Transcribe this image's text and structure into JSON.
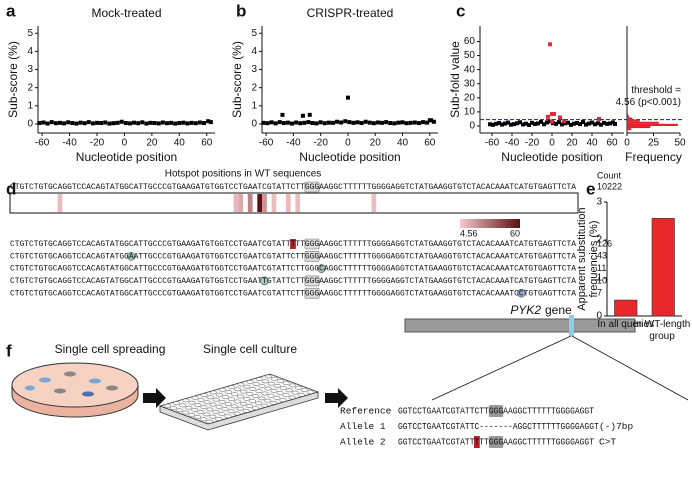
{
  "chart_data": [
    {
      "type": "scatter",
      "panel": "a",
      "title": "Mock-treated",
      "xlabel": "Nucleotide position",
      "ylabel": "Sub-score (%)",
      "xlim": [
        -63,
        66
      ],
      "ylim": [
        -0.5,
        5.4
      ],
      "xticks": [
        -60,
        -40,
        -20,
        0,
        20,
        40,
        60
      ],
      "yticks": [
        0,
        1,
        2,
        3,
        4,
        5
      ],
      "series": [
        {
          "color": "#000000",
          "x": [
            -62,
            -59,
            -56,
            -53,
            -50,
            -47,
            -44,
            -41,
            -38,
            -35,
            -32,
            -29,
            -26,
            -23,
            -20,
            -17,
            -14,
            -11,
            -8,
            -5,
            -2,
            1,
            4,
            7,
            10,
            13,
            16,
            19,
            22,
            25,
            28,
            31,
            34,
            37,
            40,
            43,
            46,
            49,
            52,
            55,
            58,
            61,
            63
          ],
          "values": [
            0.05,
            0.08,
            0.02,
            0.1,
            0.04,
            0.06,
            0.03,
            0.09,
            0.05,
            0.02,
            0.07,
            0.04,
            0.1,
            0.03,
            0.06,
            0.05,
            0.08,
            0.02,
            0.04,
            0.06,
            0.12,
            0.05,
            0.03,
            0.07,
            0.04,
            0.09,
            0.02,
            0.06,
            0.05,
            0.03,
            0.08,
            0.04,
            0.06,
            0.02,
            0.05,
            0.07,
            0.03,
            0.06,
            0.04,
            0.08,
            0.05,
            0.15,
            0.1
          ]
        }
      ]
    },
    {
      "type": "scatter",
      "panel": "b",
      "title": "CRISPR-treated",
      "xlabel": "Nucleotide position",
      "ylabel": "Sub-score (%)",
      "xlim": [
        -63,
        66
      ],
      "ylim": [
        -0.5,
        5.4
      ],
      "xticks": [
        -60,
        -40,
        -20,
        0,
        20,
        40,
        60
      ],
      "yticks": [
        0,
        1,
        2,
        3,
        4,
        5
      ],
      "series": [
        {
          "color": "#000000",
          "x": [
            -62,
            -59,
            -56,
            -53,
            -50,
            -47,
            -44,
            -41,
            -38,
            -35,
            -32,
            -29,
            -26,
            -23,
            -20,
            -17,
            -14,
            -11,
            -8,
            -5,
            -2,
            1,
            4,
            7,
            10,
            13,
            16,
            19,
            22,
            25,
            28,
            31,
            34,
            37,
            40,
            43,
            46,
            49,
            52,
            55,
            58,
            61,
            63,
            -48,
            -33,
            -28,
            0,
            60
          ],
          "values": [
            0.06,
            0.04,
            0.09,
            0.03,
            0.1,
            0.05,
            0.07,
            0.02,
            0.08,
            0.04,
            0.06,
            0.1,
            0.05,
            0.03,
            0.09,
            0.04,
            0.07,
            0.06,
            0.12,
            0.08,
            0.15,
            0.1,
            0.06,
            0.09,
            0.05,
            0.12,
            0.07,
            0.04,
            0.08,
            0.06,
            0.1,
            0.05,
            0.03,
            0.07,
            0.09,
            0.04,
            0.06,
            0.08,
            0.05,
            0.1,
            0.07,
            0.2,
            0.12,
            0.5,
            0.45,
            0.5,
            1.45,
            0.2
          ]
        }
      ]
    },
    {
      "type": "scatter",
      "panel": "c",
      "xlabel": "Nucleotide position",
      "ylabel": "Sub-fold value",
      "xlim": [
        -72,
        72
      ],
      "ylim": [
        -5,
        71
      ],
      "xticks": [
        -60,
        -40,
        -20,
        0,
        20,
        40,
        60
      ],
      "yticks": [
        0,
        10,
        20,
        30,
        40,
        50,
        60
      ],
      "threshold": 4.56,
      "threshold_color": "#1f3f9e",
      "threshold_label": [
        "threshold =",
        "4.56 (p<0.001)"
      ],
      "series": [
        {
          "color": "#000000",
          "x": [
            -62,
            -59,
            -56,
            -53,
            -50,
            -47,
            -44,
            -41,
            -38,
            -35,
            -32,
            -29,
            -26,
            -23,
            -20,
            -17,
            -14,
            -11,
            -8,
            -5,
            -2,
            1,
            4,
            7,
            10,
            13,
            16,
            19,
            22,
            25,
            28,
            31,
            34,
            37,
            40,
            43,
            46,
            49,
            52,
            55,
            58,
            61,
            63
          ],
          "values": [
            1.2,
            0.8,
            1.5,
            2.1,
            1.0,
            1.7,
            2.4,
            0.9,
            1.3,
            1.9,
            2.6,
            1.1,
            1.6,
            0.7,
            2.2,
            1.4,
            1.8,
            2.9,
            1.2,
            2.5,
            3.2,
            2.0,
            1.5,
            2.7,
            1.1,
            1.9,
            2.3,
            0.8,
            1.6,
            2.1,
            1.3,
            2.8,
            1.0,
            1.7,
            2.4,
            1.2,
            1.9,
            0.9,
            2.2,
            1.5,
            1.8,
            2.5,
            1.4
          ]
        },
        {
          "color": "#e8283a",
          "x": [
            -2,
            0,
            2,
            -4,
            8,
            12,
            47,
            0
          ],
          "values": [
            58,
            8.5,
            8.5,
            6.5,
            6,
            3.5,
            5,
            3
          ]
        }
      ]
    },
    {
      "type": "histogram",
      "xlabel": "Frequency",
      "bins": [
        -3,
        -1.5,
        0,
        1.5,
        3,
        4.5,
        6,
        7.5,
        9
      ],
      "counts": [
        4,
        22,
        48,
        30,
        12,
        5,
        2,
        1
      ],
      "color": "#e0202a",
      "xlim": [
        0,
        50
      ],
      "xticks": [
        0,
        25,
        50
      ],
      "ylim": [
        -5,
        71
      ]
    },
    {
      "type": "bar",
      "panel": "e",
      "ylabel": "Apparent substitution frequencies (%)",
      "categories": [
        "In all queries",
        "In WT-length group"
      ],
      "values": [
        0.42,
        2.57
      ],
      "color": "#e8282b",
      "ylim": [
        0,
        3
      ],
      "yticks": [
        0,
        1,
        2,
        3
      ]
    }
  ],
  "sequence_panel": {
    "panel": "d",
    "title": "Hotspot positions in WT sequences",
    "count_header": "Count",
    "reference": {
      "sequence": "CTGTCTGTGCAGGTCCACAGTATGGCATTGCCCGTGAAGATGTGGTCCTGAATCGTATTCTTGGGAAGGCTTTTTTGGGGAGGTCTATGAAGGTGTCTACACAAATCATGTGAGTTCTA",
      "count": 10222
    },
    "hotspots": {
      "positions": [
        10,
        47,
        48,
        50,
        52,
        53,
        55,
        58,
        60,
        76
      ],
      "values": [
        9,
        10,
        14,
        25,
        60,
        20,
        8,
        9,
        8,
        8
      ]
    },
    "colorbar": {
      "ticks": [
        4.56,
        60
      ],
      "colors": [
        "#f6c9cc",
        "#5a0f0f"
      ]
    },
    "variants": [
      {
        "sequence": "CTGTCTGTGCAGGTCCACAGTATGGCATTGCCCGTGAAGATGTGGTCCTGAATCGTATTTTTGGGAAGGCTTTTTTGGGGAGGTCTATGAAGGTGTCTACACAAATCATGTGAGTTCTA",
        "count": 126
      },
      {
        "sequence": "CTGTCTGTGCAGGTCCACAGTATGGAATTGCCCGTGAAGATGTGGTCCTGAATCGTATTCTTGGGAAGGCTTTTTTGGGGAGGTCTATGAAGGTGTCTACACAAATCATGTGAGTTCTA",
        "count": 43
      },
      {
        "sequence": "CTGTCTGTGCAGGTCCACAGTATGGCATTGCCCGTGAAGATGTGGTCCTGAATCGTATTCTTGGGCAGGCTTTTTTGGGGAGGTCTATGAAGGTGTCTACACAAATCATGTGAGTTCTA",
        "count": 11
      },
      {
        "sequence": "CTGTCTGTGCAGGTCCACAGTATGGCATTGCCCGTGAAGATGTGGTCCTGAATTGTATTCTTGGGAAGGCTTTTTTGGGGAGGTCTATGAAGGTGTCTACACAAATCATGTGAGTTCTA",
        "count": 10
      },
      {
        "sequence": "CTGTCTGTGCAGGTCCACAGTATGGCATTGCCCGTGAAGATGTGGTCCTGAATCGTATTCTTGGGAAGGCTTTTTTGGGGAGGTCTATGAAGGTGTCTACACAAATCCTGTGAGTTCTA",
        "count": 7
      }
    ]
  },
  "diagram_panel": {
    "panel": "f",
    "steps": [
      "Single cell spreading",
      "Single cell culture"
    ],
    "gene": "PYK2",
    "gene_word": "gene",
    "alleles": [
      {
        "label": "Reference",
        "sequence": "GGTCCTGAATCGTATTCTTGGGAAGGCTTTTTTGGGGAGGT"
      },
      {
        "label": "Allele 1",
        "sequence": "GGTCCTGAATCGTATTC-------AGGCTTTTTTGGGGAGGT",
        "note": "(-)7bp"
      },
      {
        "label": "Allele 2",
        "sequence": "GGTCCTGAATCGTATTTTTGGGAAGGCTTTTTTGGGGAGGT",
        "note": "C>T"
      }
    ]
  }
}
